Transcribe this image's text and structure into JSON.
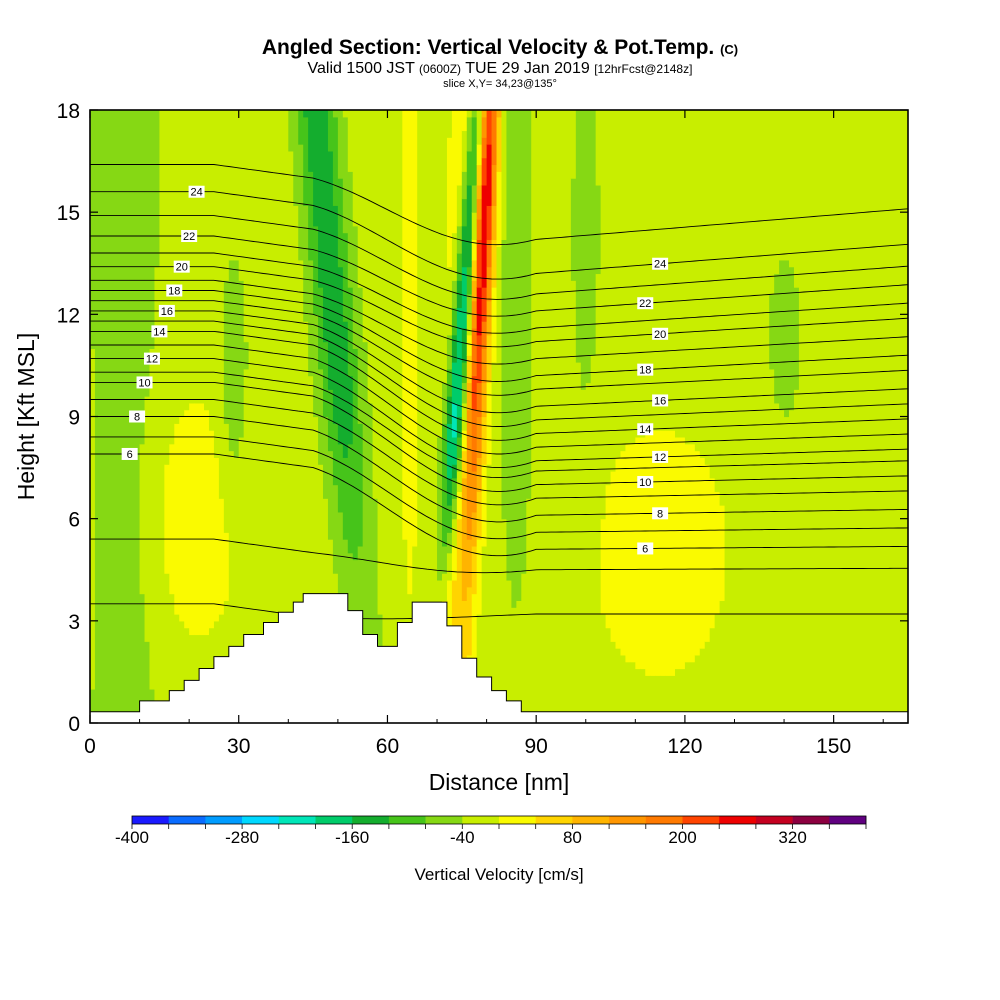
{
  "title": {
    "main": "Angled Section: Vertical Velocity & Pot.Temp.",
    "unit_tag": "(C)",
    "valid_prefix": "Valid 1500 JST",
    "valid_utc": "(0600Z)",
    "valid_date": "TUE 29 Jan 2019",
    "forecast": "[12hrFcst@2148z]",
    "slice": "slice X,Y= 34,23@135°"
  },
  "chart_data": {
    "type": "heatmap",
    "xlabel": "Distance [nm]",
    "ylabel": "Height [Kft MSL]",
    "xlim": [
      0,
      165
    ],
    "ylim": [
      0,
      18
    ],
    "xticks": [
      0,
      30,
      60,
      90,
      120,
      150
    ],
    "yticks": [
      0,
      3,
      6,
      9,
      12,
      15,
      18
    ],
    "colorbar": {
      "label": "Vertical Velocity [cm/s]",
      "tick_labels": [
        "-400",
        "-280",
        "-160",
        "-40",
        "80",
        "200",
        "320"
      ],
      "tick_values": [
        -400,
        -280,
        -160,
        -40,
        80,
        200,
        320
      ],
      "levels": [
        -400,
        -360,
        -320,
        -280,
        -240,
        -200,
        -160,
        -120,
        -80,
        -40,
        0,
        40,
        80,
        120,
        160,
        200,
        240,
        280,
        320,
        360,
        400
      ],
      "colors": [
        "#1a1aff",
        "#0a6cff",
        "#009cff",
        "#00d8ff",
        "#00e6b8",
        "#00cc6a",
        "#14ad2e",
        "#46c41a",
        "#86d814",
        "#c8ee00",
        "#fafa00",
        "#ffd400",
        "#ffb400",
        "#ff9600",
        "#ff7a00",
        "#ff4400",
        "#ee0000",
        "#c40020",
        "#8c0040",
        "#600080"
      ]
    },
    "vertical_velocity_field": {
      "background_value": -20,
      "features": [
        {
          "kind": "updraft",
          "x_range": [
            68,
            82
          ],
          "top_value": 360,
          "near_surface_value": 60
        },
        {
          "kind": "downdraft",
          "x_range": [
            68,
            74
          ],
          "peak_value": -280
        },
        {
          "kind": "downdraft",
          "x_range": [
            44,
            60
          ],
          "peak_value": -150
        },
        {
          "kind": "downdraft",
          "x_range": [
            82,
            88
          ],
          "peak_value": -90
        },
        {
          "kind": "weak_updraft",
          "x_range": [
            95,
            130
          ],
          "peak_value": 20
        },
        {
          "kind": "weak_updraft",
          "x_range": [
            0,
            40
          ],
          "peak_value": 20
        }
      ]
    },
    "potential_temperature_contours": {
      "labels": [
        "6",
        "8",
        "10",
        "12",
        "14",
        "16",
        "18",
        "20",
        "22",
        "24"
      ],
      "levels": [
        4,
        5,
        6,
        7,
        8,
        9,
        10,
        11,
        12,
        13,
        14,
        15,
        16,
        17,
        18,
        19,
        20,
        21,
        22,
        23,
        24,
        25
      ],
      "upstream_heights": [
        3.5,
        5.4,
        7.9,
        8.4,
        9.0,
        9.5,
        10.0,
        10.3,
        10.7,
        11.1,
        11.5,
        11.8,
        12.1,
        12.4,
        12.7,
        13.0,
        13.4,
        13.8,
        14.3,
        14.9,
        15.6,
        16.4
      ],
      "downstream_heights": [
        3.2,
        4.5,
        5.1,
        5.6,
        6.1,
        6.6,
        7.0,
        7.4,
        7.7,
        8.1,
        8.5,
        8.9,
        9.3,
        9.8,
        10.2,
        10.7,
        11.2,
        11.6,
        12.1,
        12.6,
        13.2,
        14.2
      ]
    },
    "terrain_profile": [
      [
        0,
        0.33
      ],
      [
        10,
        0.33
      ],
      [
        10,
        0.65
      ],
      [
        16,
        0.65
      ],
      [
        16,
        0.95
      ],
      [
        19,
        0.95
      ],
      [
        19,
        1.25
      ],
      [
        22,
        1.25
      ],
      [
        22,
        1.6
      ],
      [
        25,
        1.6
      ],
      [
        25,
        1.95
      ],
      [
        28,
        1.95
      ],
      [
        28,
        2.25
      ],
      [
        31,
        2.25
      ],
      [
        31,
        2.6
      ],
      [
        35,
        2.6
      ],
      [
        35,
        2.95
      ],
      [
        38,
        2.95
      ],
      [
        38,
        3.25
      ],
      [
        41,
        3.25
      ],
      [
        41,
        3.55
      ],
      [
        43,
        3.55
      ],
      [
        43,
        3.8
      ],
      [
        52,
        3.8
      ],
      [
        52,
        3.3
      ],
      [
        55,
        3.3
      ],
      [
        55,
        2.6
      ],
      [
        58,
        2.6
      ],
      [
        58,
        2.25
      ],
      [
        62,
        2.25
      ],
      [
        62,
        2.95
      ],
      [
        65,
        2.95
      ],
      [
        65,
        3.55
      ],
      [
        72,
        3.55
      ],
      [
        72,
        2.85
      ],
      [
        75,
        2.85
      ],
      [
        75,
        1.9
      ],
      [
        78,
        1.9
      ],
      [
        78,
        1.35
      ],
      [
        81,
        1.35
      ],
      [
        81,
        0.95
      ],
      [
        84,
        0.95
      ],
      [
        84,
        0.65
      ],
      [
        87,
        0.65
      ],
      [
        87,
        0.33
      ],
      [
        165,
        0.33
      ]
    ]
  }
}
